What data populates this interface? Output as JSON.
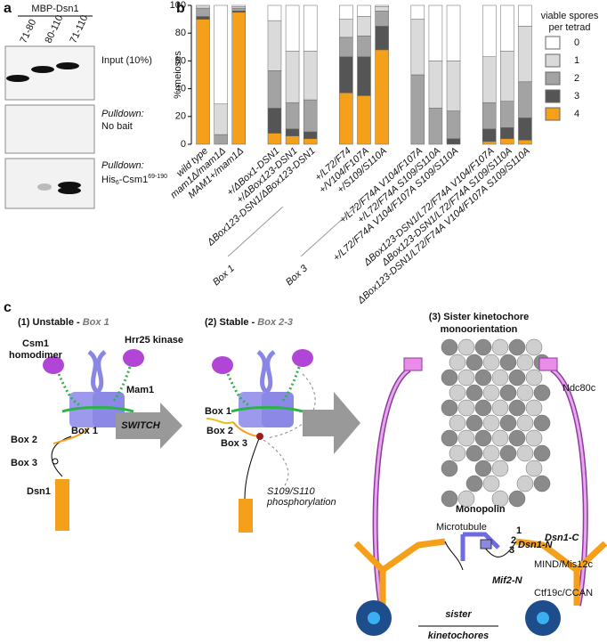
{
  "panel_a": {
    "label": "a",
    "header": "MBP-Dsn1",
    "lanes": [
      "71-80",
      "80-110",
      "71-110"
    ],
    "input": "Input (10%)",
    "pulldown1": {
      "title": "Pulldown:",
      "text": "No bait"
    },
    "pulldown2": {
      "title": "Pulldown:",
      "text": "His",
      "sub": "6",
      "rest": "-Csm1",
      "sup": "69-190"
    }
  },
  "chart_data": {
    "type": "stacked_bar",
    "panel_label": "b",
    "ylabel": "% meioses",
    "legend_title": [
      "viable spores",
      "per tetrad"
    ],
    "categories": [
      "wild type",
      "mam1Δ/mam1Δ",
      "MAM1+/mam1Δ",
      null,
      "+/ΔBox1-DSN1",
      "+/ΔBox123-DSN1",
      "ΔBox123-DSN1/ΔBox123-DSN1",
      null,
      "+/L72/F74",
      "+/V104/F107A",
      "+/S109/S110A",
      null,
      "+/L72/F74A V104/F107A",
      "+/L72/F74A S109/S110A",
      "+/L72/F74A V104/F107A S109/S110A",
      null,
      "ΔBox123-DSN1/L72/F74A V104/F107A",
      "ΔBox123-DSN1/L72/F74A S109/S110A",
      "ΔBox123-DSN1/L72/F74A V104/F107A S109/S110A"
    ],
    "series": [
      {
        "name": "4",
        "color": "#f5a01a",
        "values": [
          90,
          0,
          95,
          null,
          8,
          6,
          4,
          null,
          37,
          35,
          68,
          null,
          0,
          0,
          0,
          null,
          2,
          4,
          3
        ]
      },
      {
        "name": "3",
        "color": "#555555",
        "values": [
          2,
          0,
          1,
          null,
          18,
          5,
          5,
          null,
          26,
          28,
          17,
          null,
          0,
          0,
          4,
          null,
          9,
          8,
          16
        ]
      },
      {
        "name": "2",
        "color": "#a3a3a3",
        "values": [
          6,
          7,
          2,
          null,
          27,
          19,
          23,
          null,
          14,
          15,
          11,
          null,
          50,
          26,
          20,
          null,
          19,
          19,
          26
        ]
      },
      {
        "name": "1",
        "color": "#dadada",
        "values": [
          2,
          22,
          1,
          null,
          36,
          37,
          35,
          null,
          13,
          14,
          3,
          null,
          40,
          34,
          36,
          null,
          33,
          36,
          40
        ]
      },
      {
        "name": "0",
        "color": "#ffffff",
        "values": [
          0,
          71,
          1,
          null,
          11,
          33,
          33,
          null,
          10,
          8,
          1,
          null,
          10,
          40,
          40,
          null,
          37,
          33,
          15
        ]
      }
    ],
    "ylim": [
      0,
      100
    ],
    "yticks": [
      0,
      20,
      40,
      60,
      80,
      100
    ],
    "annotations": [
      "Box 1",
      "Box 3"
    ]
  },
  "panel_c": {
    "label": "c",
    "step1": {
      "title": "(1) Unstable - ",
      "title_box": "Box 1",
      "csm1": [
        "Csm1",
        "homodimer"
      ],
      "hrr25": "Hrr25 kinase",
      "mam1": "Mam1",
      "box1": "Box 1",
      "box2": "Box 2",
      "box3": "Box 3",
      "dsn1": "Dsn1"
    },
    "switch": "SWITCH",
    "step2": {
      "title": "(2) Stable - ",
      "title_box": "Box 2-3",
      "box1": "Box 1",
      "box2": "Box 2",
      "box3": "Box 3",
      "phospho": [
        "S109/S110",
        "phosphorylation"
      ]
    },
    "step3": {
      "title": [
        "(3) Sister kinetochore",
        "monoorientation"
      ],
      "ndc80": "Ndc80c",
      "microtubule": "Microtubule",
      "monopolin": "Monopolin",
      "boxes": [
        "1",
        "2",
        "3"
      ],
      "dsn1n": "Dsn1-N",
      "dsn1c": "Dsn1-C",
      "mind": "MIND/Mis12c",
      "mif2": "Mif2-N",
      "ctf19": "Ctf19c/CCAN",
      "sister": [
        "sister",
        "kinetochores"
      ]
    }
  }
}
